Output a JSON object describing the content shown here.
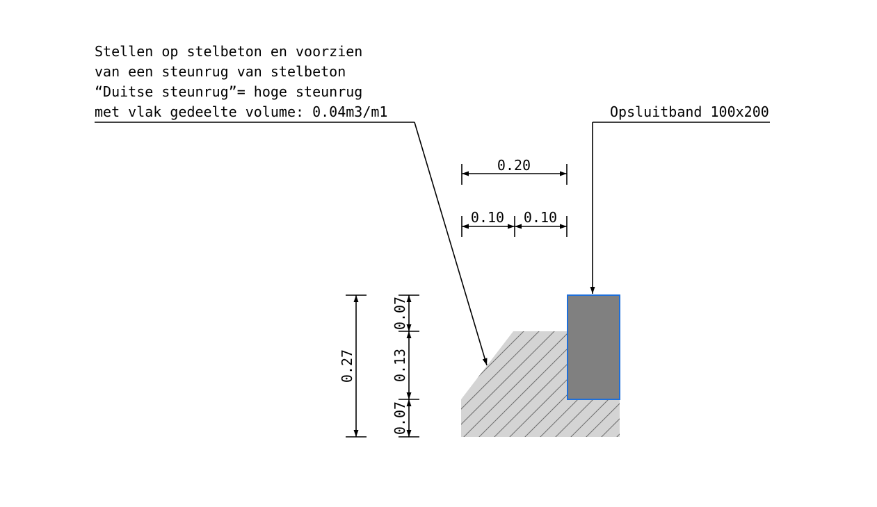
{
  "annotations": {
    "concrete_note": [
      "Stellen op stelbeton en voorzien",
      "van een steunrug van stelbeton",
      "“Duitse steunrug”= hoge steunrug",
      "met vlak gedeelte volume: 0.04m3/m1"
    ],
    "curb_label": "Opsluitband 100x200"
  },
  "dimensions": {
    "total_width": "0.20",
    "half_width_left": "0.10",
    "half_width_right": "0.10",
    "total_height": "0.27",
    "height_top": "0.07",
    "height_middle": "0.13",
    "height_bottom": "0.07"
  },
  "colors": {
    "concrete_fill": "#d4d4d4",
    "hatch": "#6e6e6e",
    "curb_fill": "#808080",
    "curb_outline": "#1e6fd9",
    "lines": "#000000"
  }
}
